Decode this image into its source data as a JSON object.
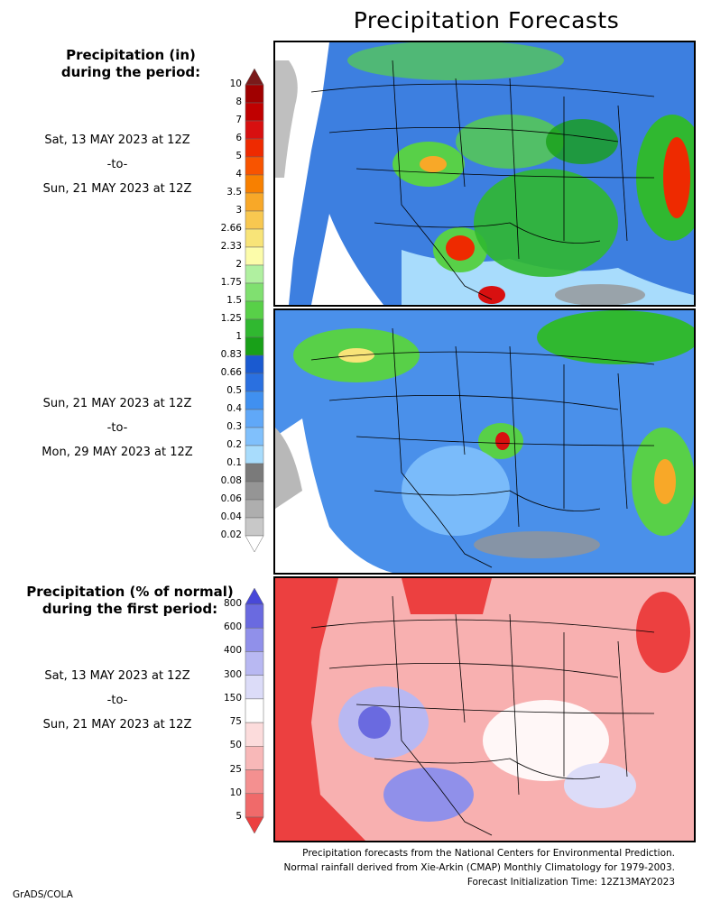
{
  "title": "Precipitation Forecasts",
  "panel1_header": [
    "Precipitation (in)",
    "during the period:"
  ],
  "period1": {
    "start": "Sat, 13 MAY 2023 at 12Z",
    "sep": "-to-",
    "end": "Sun, 21 MAY 2023 at 12Z"
  },
  "period2": {
    "start": "Sun, 21 MAY 2023 at 12Z",
    "sep": "-to-",
    "end": "Mon, 29 MAY 2023 at 12Z"
  },
  "panel3_header": [
    "Precipitation (% of normal)",
    "during the first period:"
  ],
  "period3": {
    "start": "Sat, 13 MAY 2023 at 12Z",
    "sep": "-to-",
    "end": "Sun, 21 MAY 2023 at 12Z"
  },
  "precip_scale": {
    "labels": [
      "10",
      "8",
      "7",
      "6",
      "5",
      "4",
      "3.5",
      "3",
      "2.66",
      "2.33",
      "2",
      "1.75",
      "1.5",
      "1.25",
      "1",
      "0.83",
      "0.66",
      "0.5",
      "0.4",
      "0.3",
      "0.2",
      "0.1",
      "0.08",
      "0.06",
      "0.04",
      "0.02"
    ],
    "colors": [
      "#7a1a1a",
      "#a00000",
      "#c00000",
      "#d81010",
      "#ee2a00",
      "#f85400",
      "#f88000",
      "#f8a828",
      "#f8c850",
      "#f8e478",
      "#fcfcaa",
      "#b0f0a0",
      "#80e070",
      "#58d048",
      "#30b830",
      "#18a018",
      "#1a5ad0",
      "#2a70e0",
      "#4090f0",
      "#60a8f8",
      "#80c0fc",
      "#a8dcfc",
      "#7a7a7a",
      "#959595",
      "#aeaeae",
      "#c8c8c8",
      "#ffffff"
    ]
  },
  "pct_scale": {
    "labels": [
      "800",
      "600",
      "400",
      "300",
      "150",
      "75",
      "50",
      "25",
      "10",
      "5"
    ],
    "colors": [
      "#4848d8",
      "#6a6ae0",
      "#9090ea",
      "#b8b8f2",
      "#dcdcf8",
      "#ffffff",
      "#fcdcdc",
      "#f8b8b8",
      "#f49090",
      "#f06a6a",
      "#ec4040"
    ]
  },
  "credits": [
    "Precipitation forecasts from the National Centers for Environmental Prediction.",
    "Normal rainfall derived from Xie-Arkin (CMAP) Monthly Climatology for 1979-2003.",
    "Forecast Initialization Time: 12Z13MAY2023"
  ],
  "footer": "GrADS/COLA"
}
